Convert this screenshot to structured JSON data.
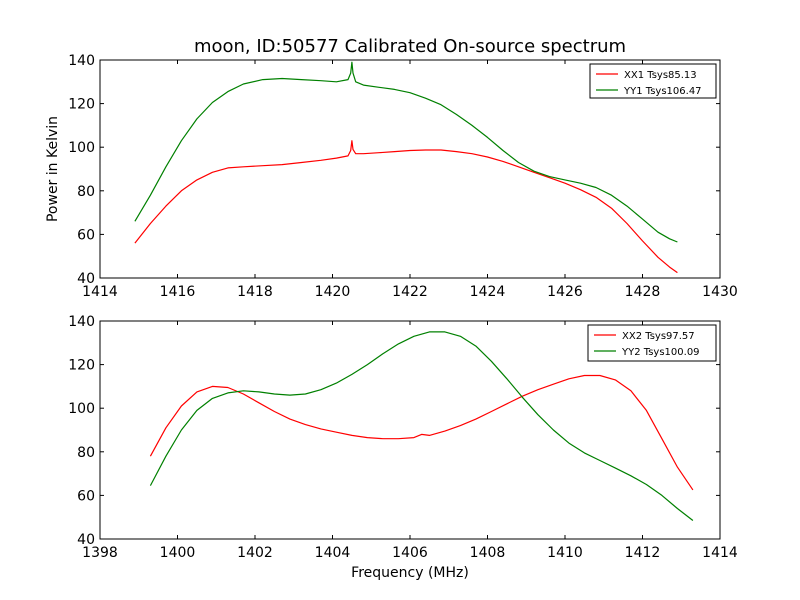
{
  "chart_data": [
    {
      "type": "line",
      "title": "moon, ID:50577 Calibrated On-source spectrum",
      "xlabel": "",
      "ylabel": "Power in Kelvin",
      "xlim": [
        1414,
        1430
      ],
      "ylim": [
        40,
        140
      ],
      "xticks": [
        "1414",
        "1416",
        "1418",
        "1420",
        "1422",
        "1424",
        "1426",
        "1428",
        "1430"
      ],
      "yticks": [
        "40",
        "60",
        "80",
        "100",
        "120",
        "140"
      ],
      "legend_position": "top-right",
      "grid": false,
      "series": [
        {
          "name": "XX1 Tsys85.13",
          "color": "#ff0000",
          "x": [
            1414.9,
            1415.3,
            1415.7,
            1416.1,
            1416.5,
            1416.9,
            1417.3,
            1417.7,
            1418.2,
            1418.7,
            1419.2,
            1419.7,
            1420.1,
            1420.4,
            1420.47,
            1420.5,
            1420.53,
            1420.6,
            1420.8,
            1421.2,
            1421.6,
            1422.0,
            1422.4,
            1422.8,
            1423.2,
            1423.6,
            1424.0,
            1424.4,
            1424.8,
            1425.2,
            1425.6,
            1426.0,
            1426.4,
            1426.8,
            1427.2,
            1427.6,
            1428.0,
            1428.4,
            1428.7,
            1428.9
          ],
          "values": [
            56,
            65,
            73,
            80,
            85,
            88.5,
            90.5,
            91,
            91.5,
            92,
            93,
            94,
            95,
            96,
            98.5,
            103,
            99,
            97,
            97,
            97.5,
            98,
            98.5,
            98.7,
            98.7,
            98,
            97,
            95.5,
            93.5,
            91,
            88.5,
            86,
            83.5,
            80.5,
            77,
            72,
            65,
            57,
            49.5,
            45,
            42.5
          ]
        },
        {
          "name": "YY1 Tsys106.47",
          "color": "#008000",
          "x": [
            1414.9,
            1415.3,
            1415.7,
            1416.1,
            1416.5,
            1416.9,
            1417.3,
            1417.7,
            1418.2,
            1418.7,
            1419.2,
            1419.7,
            1420.1,
            1420.4,
            1420.47,
            1420.5,
            1420.53,
            1420.6,
            1420.8,
            1421.2,
            1421.6,
            1422.0,
            1422.4,
            1422.8,
            1423.2,
            1423.6,
            1424.0,
            1424.4,
            1424.8,
            1425.2,
            1425.6,
            1426.0,
            1426.4,
            1426.8,
            1427.2,
            1427.6,
            1428.0,
            1428.4,
            1428.7,
            1428.9
          ],
          "values": [
            66,
            78,
            91,
            103,
            113,
            120.5,
            125.5,
            129,
            131,
            131.5,
            131,
            130.5,
            130,
            131,
            134,
            139,
            134,
            130,
            128.5,
            127.5,
            126.5,
            125,
            122.5,
            119.5,
            115,
            110,
            104.5,
            98.5,
            93,
            89,
            86.5,
            85,
            83.5,
            81.5,
            78,
            73,
            67,
            61,
            58,
            56.5
          ]
        }
      ]
    },
    {
      "type": "line",
      "title": "",
      "xlabel": "Frequency (MHz)",
      "ylabel": "",
      "xlim": [
        1398,
        1414
      ],
      "ylim": [
        40,
        140
      ],
      "xticks": [
        "1398",
        "1400",
        "1402",
        "1404",
        "1406",
        "1408",
        "1410",
        "1412",
        "1414"
      ],
      "yticks": [
        "40",
        "60",
        "80",
        "100",
        "120",
        "140"
      ],
      "legend_position": "top-right",
      "grid": false,
      "series": [
        {
          "name": "XX2 Tsys97.57",
          "color": "#ff0000",
          "x": [
            1399.3,
            1399.7,
            1400.1,
            1400.5,
            1400.9,
            1401.3,
            1401.7,
            1402.1,
            1402.5,
            1402.9,
            1403.3,
            1403.7,
            1404.1,
            1404.5,
            1404.9,
            1405.3,
            1405.7,
            1406.1,
            1406.3,
            1406.5,
            1406.9,
            1407.3,
            1407.7,
            1408.1,
            1408.5,
            1408.9,
            1409.3,
            1409.7,
            1410.1,
            1410.5,
            1410.9,
            1411.3,
            1411.7,
            1412.1,
            1412.5,
            1412.9,
            1413.3
          ],
          "values": [
            78,
            91,
            101,
            107.5,
            110,
            109.5,
            106.5,
            102.5,
            98.5,
            95,
            92.5,
            90.5,
            89,
            87.5,
            86.5,
            86,
            86,
            86.5,
            88,
            87.5,
            89.5,
            92,
            95,
            98.5,
            102,
            105.5,
            108.5,
            111,
            113.5,
            115,
            115,
            113,
            108,
            99,
            86,
            73,
            62.5
          ]
        },
        {
          "name": "YY2 Tsys100.09",
          "color": "#008000",
          "x": [
            1399.3,
            1399.7,
            1400.1,
            1400.5,
            1400.9,
            1401.3,
            1401.7,
            1402.1,
            1402.5,
            1402.9,
            1403.3,
            1403.7,
            1404.1,
            1404.5,
            1404.9,
            1405.3,
            1405.7,
            1406.1,
            1406.5,
            1406.9,
            1407.3,
            1407.7,
            1408.1,
            1408.5,
            1408.9,
            1409.3,
            1409.7,
            1410.1,
            1410.5,
            1410.9,
            1411.3,
            1411.7,
            1412.1,
            1412.5,
            1412.9,
            1413.3
          ],
          "values": [
            64.5,
            78,
            90,
            99,
            104.5,
            107,
            108,
            107.5,
            106.5,
            106,
            106.5,
            108.5,
            111.5,
            115.5,
            120,
            125,
            129.5,
            133,
            135,
            135,
            133,
            128.5,
            121.5,
            113.5,
            105,
            97,
            90,
            84,
            79.5,
            76,
            72.5,
            69,
            65,
            60,
            54,
            48.5
          ]
        }
      ]
    }
  ]
}
